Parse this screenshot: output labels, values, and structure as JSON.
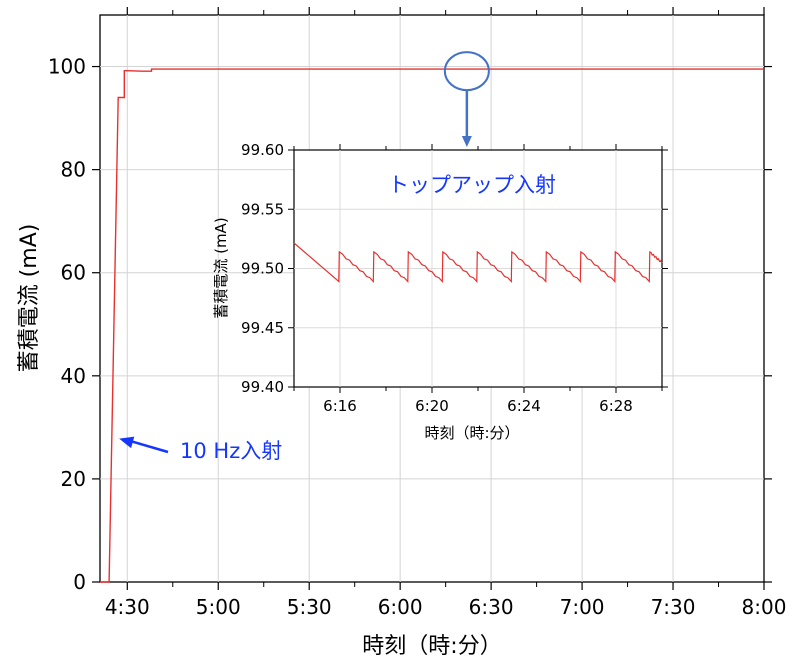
{
  "chart_data": [
    {
      "type": "line",
      "title": "",
      "xlabel": "時刻（時:分）",
      "ylabel": "蓄積電流 (mA)",
      "xlim": [
        "4:21",
        "8:00"
      ],
      "ylim": [
        0,
        110
      ],
      "x_ticks": [
        "4:30",
        "5:00",
        "5:30",
        "6:00",
        "6:30",
        "7:00",
        "7:30",
        "8:00"
      ],
      "y_ticks": [
        0,
        20,
        40,
        60,
        80,
        100
      ],
      "series_color": "#e8312f",
      "series": [
        {
          "x": [
            "4:21",
            "4:23",
            "4:24",
            "4:27",
            "4:28",
            "4:28",
            "4:29",
            "4:29",
            "4:30",
            "4:30",
            "4:35",
            "4:38",
            "4:38",
            "6:00",
            "8:00"
          ],
          "values": [
            0,
            0,
            0,
            94,
            94,
            94,
            94,
            99.2,
            99.2,
            99.2,
            99.1,
            99.1,
            99.5,
            99.5,
            99.5
          ]
        }
      ],
      "annotations": [
        {
          "text": "10 Hz入射",
          "color": "#1536ff",
          "points_to": {
            "x": "4:26",
            "y": 28
          }
        }
      ],
      "highlight": {
        "shape": "ellipse",
        "color": "#4472c4",
        "x": "6:22",
        "y": 99.5
      }
    },
    {
      "type": "line",
      "title": "トップアップ入射",
      "title_color": "#1536ff",
      "xlabel": "時刻（時:分）",
      "ylabel": "蓄積電流 (mA)",
      "xlim": [
        "6:14",
        "6:30"
      ],
      "ylim": [
        99.4,
        99.6
      ],
      "x_ticks": [
        "6:16",
        "6:20",
        "6:24",
        "6:28"
      ],
      "y_ticks": [
        "99.40",
        "99.45",
        "99.50",
        "99.55",
        "99.60"
      ],
      "series_color": "#e8312f",
      "top_up_period_min": 1.5,
      "top_up_times": [
        "6:15.95",
        "6:17.45",
        "6:18.95",
        "6:20.45",
        "6:21.95",
        "6:23.45",
        "6:24.95",
        "6:26.45",
        "6:27.95",
        "6:29.45"
      ],
      "peak_ma": 99.514,
      "trough_ma": 99.489
    }
  ]
}
